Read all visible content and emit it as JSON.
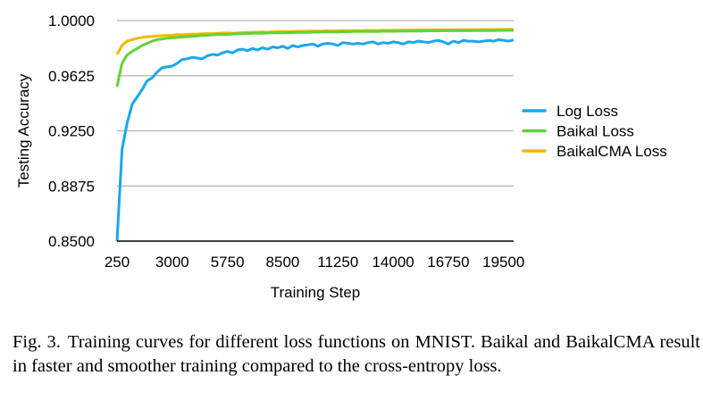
{
  "chart_data": {
    "type": "line",
    "title": "",
    "xlabel": "Training Step",
    "ylabel": "Testing Accuracy",
    "xlim": [
      250,
      20000
    ],
    "ylim": [
      0.85,
      1.0
    ],
    "x_ticks": [
      "250",
      "3000",
      "5750",
      "8500",
      "11250",
      "14000",
      "16750",
      "19500"
    ],
    "y_ticks": [
      "0.8500",
      "0.8875",
      "0.9250",
      "0.9625",
      "1.0000"
    ],
    "grid": "horizontal",
    "legend_position": "right",
    "x": [
      250,
      500,
      750,
      1000,
      1250,
      1500,
      1750,
      2000,
      2250,
      2500,
      2750,
      3000,
      3250,
      3500,
      3750,
      4000,
      4250,
      4500,
      4750,
      5000,
      5250,
      5500,
      5750,
      6000,
      6250,
      6500,
      6750,
      7000,
      7250,
      7500,
      7750,
      8000,
      8250,
      8500,
      8750,
      9000,
      9250,
      9500,
      9750,
      10000,
      10250,
      10500,
      10750,
      11000,
      11250,
      11500,
      11750,
      12000,
      12250,
      12500,
      12750,
      13000,
      13250,
      13500,
      13750,
      14000,
      14250,
      14500,
      14750,
      15000,
      15250,
      15500,
      15750,
      16000,
      16250,
      16500,
      16750,
      17000,
      17250,
      17500,
      17750,
      18000,
      18250,
      18500,
      18750,
      19000,
      19250,
      19500,
      19750,
      20000
    ],
    "series": [
      {
        "name": "Log Loss",
        "color": "#1aa7ec",
        "values": [
          0.85,
          0.912,
          0.93,
          0.943,
          0.948,
          0.953,
          0.959,
          0.961,
          0.965,
          0.968,
          0.9685,
          0.969,
          0.971,
          0.9735,
          0.974,
          0.975,
          0.9745,
          0.974,
          0.976,
          0.977,
          0.9765,
          0.978,
          0.979,
          0.978,
          0.98,
          0.9805,
          0.9795,
          0.981,
          0.98,
          0.9815,
          0.9805,
          0.982,
          0.9815,
          0.9825,
          0.981,
          0.983,
          0.982,
          0.983,
          0.9835,
          0.984,
          0.9825,
          0.984,
          0.9845,
          0.984,
          0.983,
          0.985,
          0.9845,
          0.984,
          0.9845,
          0.984,
          0.985,
          0.9855,
          0.984,
          0.985,
          0.9845,
          0.9855,
          0.985,
          0.984,
          0.9855,
          0.985,
          0.986,
          0.9855,
          0.985,
          0.986,
          0.9865,
          0.9855,
          0.984,
          0.986,
          0.985,
          0.9865,
          0.986,
          0.986,
          0.9855,
          0.986,
          0.9865,
          0.986,
          0.987,
          0.9865,
          0.986,
          0.9868
        ]
      },
      {
        "name": "Baikal Loss",
        "color": "#62d23b",
        "values": [
          0.955,
          0.971,
          0.9765,
          0.979,
          0.981,
          0.983,
          0.9845,
          0.986,
          0.987,
          0.9875,
          0.988,
          0.9882,
          0.9885,
          0.9888,
          0.989,
          0.9893,
          0.9895,
          0.9898,
          0.99,
          0.9903,
          0.9905,
          0.9906,
          0.9905,
          0.9908,
          0.991,
          0.9911,
          0.9912,
          0.9913,
          0.9913,
          0.9914,
          0.9915,
          0.9916,
          0.9917,
          0.9917,
          0.9918,
          0.9918,
          0.9919,
          0.992,
          0.992,
          0.9921,
          0.9921,
          0.9922,
          0.9922,
          0.9923,
          0.9923,
          0.9924,
          0.9924,
          0.9925,
          0.9925,
          0.9925,
          0.9926,
          0.9926,
          0.9926,
          0.9927,
          0.9927,
          0.9927,
          0.9928,
          0.9928,
          0.9928,
          0.9929,
          0.9929,
          0.9929,
          0.993,
          0.993,
          0.993,
          0.993,
          0.9931,
          0.9931,
          0.9931,
          0.9931,
          0.9931,
          0.9932,
          0.9932,
          0.9932,
          0.9932,
          0.9932,
          0.9933,
          0.9933,
          0.9933,
          0.9933
        ]
      },
      {
        "name": "BaikalCMA Loss",
        "color": "#f5b800",
        "values": [
          0.977,
          0.983,
          0.986,
          0.987,
          0.988,
          0.9885,
          0.989,
          0.9892,
          0.9895,
          0.9897,
          0.9899,
          0.99,
          0.9905,
          0.9903,
          0.9906,
          0.9908,
          0.9907,
          0.991,
          0.9912,
          0.9911,
          0.9913,
          0.9915,
          0.9916,
          0.9914,
          0.9917,
          0.9918,
          0.9919,
          0.992,
          0.9921,
          0.9922,
          0.9921,
          0.9923,
          0.9924,
          0.9925,
          0.9924,
          0.9926,
          0.9927,
          0.9927,
          0.9928,
          0.9928,
          0.9929,
          0.9929,
          0.993,
          0.993,
          0.993,
          0.9931,
          0.9931,
          0.9932,
          0.9932,
          0.9932,
          0.9933,
          0.9933,
          0.9933,
          0.9934,
          0.9934,
          0.9934,
          0.9935,
          0.9935,
          0.9935,
          0.9935,
          0.9936,
          0.9936,
          0.9936,
          0.9936,
          0.9937,
          0.9937,
          0.9937,
          0.9937,
          0.9938,
          0.9938,
          0.9938,
          0.9938,
          0.9938,
          0.9939,
          0.9939,
          0.9939,
          0.9939,
          0.9939,
          0.994,
          0.994
        ]
      }
    ]
  },
  "caption": {
    "label": "Fig. 3.",
    "text": "Training curves for different loss functions on MNIST. Baikal and BaikalCMA result in faster and smoother training compared to the cross-entropy loss."
  }
}
